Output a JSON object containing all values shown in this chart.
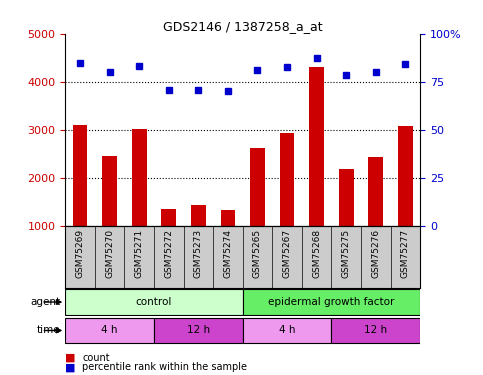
{
  "title": "GDS2146 / 1387258_a_at",
  "samples": [
    "GSM75269",
    "GSM75270",
    "GSM75271",
    "GSM75272",
    "GSM75273",
    "GSM75274",
    "GSM75265",
    "GSM75267",
    "GSM75268",
    "GSM75275",
    "GSM75276",
    "GSM75277"
  ],
  "bar_values": [
    3100,
    2450,
    3010,
    1350,
    1420,
    1330,
    2620,
    2930,
    4300,
    2180,
    2440,
    3080
  ],
  "dot_values": [
    4380,
    4200,
    4320,
    3830,
    3830,
    3800,
    4250,
    4300,
    4500,
    4150,
    4200,
    4360
  ],
  "bar_color": "#cc0000",
  "dot_color": "#0000cc",
  "ylim_left": [
    1000,
    5000
  ],
  "ylim_right": [
    0,
    100
  ],
  "yticks_left": [
    1000,
    2000,
    3000,
    4000,
    5000
  ],
  "yticks_right": [
    0,
    25,
    50,
    75,
    100
  ],
  "ytick_labels_right": [
    "0",
    "25",
    "50",
    "75",
    "100%"
  ],
  "grid_lines": [
    2000,
    3000,
    4000
  ],
  "agent_labels": [
    {
      "text": "control",
      "start": 0,
      "end": 6,
      "color": "#ccffcc"
    },
    {
      "text": "epidermal growth factor",
      "start": 6,
      "end": 12,
      "color": "#66ee66"
    }
  ],
  "time_labels": [
    {
      "text": "4 h",
      "start": 0,
      "end": 3,
      "color": "#ee99ee"
    },
    {
      "text": "12 h",
      "start": 3,
      "end": 6,
      "color": "#cc44cc"
    },
    {
      "text": "4 h",
      "start": 6,
      "end": 9,
      "color": "#ee99ee"
    },
    {
      "text": "12 h",
      "start": 9,
      "end": 12,
      "color": "#cc44cc"
    }
  ],
  "legend_items": [
    {
      "label": "count",
      "color": "#cc0000"
    },
    {
      "label": "percentile rank within the sample",
      "color": "#0000cc"
    }
  ],
  "tick_color_left": "#cc0000",
  "tick_color_right": "#0000cc",
  "bg_color": "#ffffff",
  "sample_box_color": "#cccccc",
  "bar_width": 0.5
}
